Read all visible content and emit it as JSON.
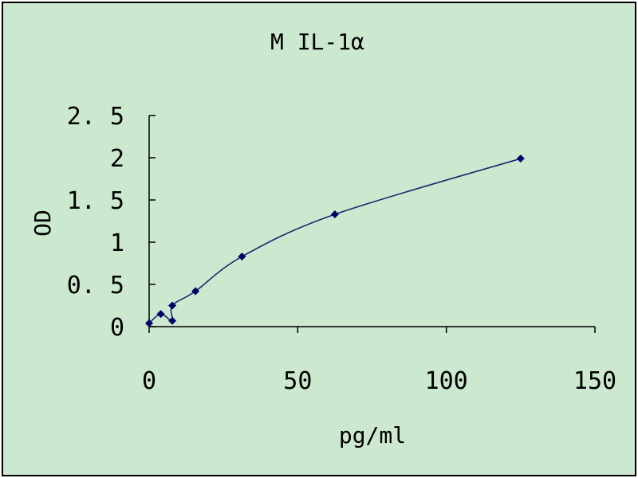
{
  "chart_data": {
    "type": "scatter",
    "title": "M IL-1α",
    "xlabel": "pg/ml",
    "ylabel": "OD",
    "xlim": [
      0,
      150
    ],
    "ylim": [
      0,
      2.5
    ],
    "x_ticks": [
      0,
      50,
      100,
      150
    ],
    "y_ticks": [
      0,
      0.5,
      1,
      1.5,
      2,
      2.5
    ],
    "x_tick_labels": [
      "0",
      "50",
      "100",
      "150"
    ],
    "y_tick_labels": [
      "0",
      "0. 5",
      "1",
      "1. 5",
      "2",
      "2. 5"
    ],
    "grid": false,
    "legend": "none",
    "background_color": "#cce8cf",
    "line_color": "#1a2a6c",
    "marker_color": "#000066",
    "marker": "diamond",
    "smoothed_line": true,
    "series": [
      {
        "points": [
          [
            0,
            0.04
          ],
          [
            3.9,
            0.15
          ],
          [
            7.8,
            0.07
          ],
          [
            7.8,
            0.25
          ],
          [
            15.6,
            0.42
          ],
          [
            31.25,
            0.83
          ],
          [
            62.5,
            1.33
          ],
          [
            125,
            1.99
          ]
        ]
      }
    ]
  }
}
